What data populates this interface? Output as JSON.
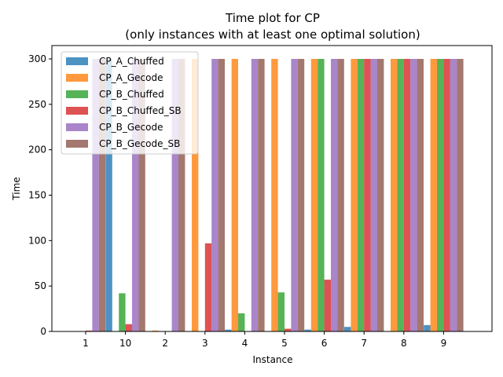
{
  "chart_data": {
    "type": "bar",
    "title": "Time plot for CP",
    "subtitle": "(only instances with at least one optimal solution)",
    "xlabel": "Instance",
    "ylabel": "Time",
    "categories": [
      "1",
      "10",
      "2",
      "3",
      "4",
      "5",
      "6",
      "7",
      "8",
      "9"
    ],
    "ylim": [
      0,
      315
    ],
    "yticks": [
      0,
      50,
      100,
      150,
      200,
      250,
      300
    ],
    "grid": false,
    "legend_position": "top-left",
    "series": [
      {
        "name": "CP_A_Chuffed",
        "color": "#1f77b4",
        "values": [
          0,
          300,
          0,
          0,
          2,
          0,
          2,
          5,
          0,
          7
        ]
      },
      {
        "name": "CP_A_Gecode",
        "color": "#ff7f0e",
        "values": [
          0,
          0,
          1,
          300,
          300,
          300,
          300,
          300,
          300,
          300
        ]
      },
      {
        "name": "CP_B_Chuffed",
        "color": "#2ca02c",
        "values": [
          0,
          42,
          0,
          0,
          20,
          43,
          300,
          300,
          300,
          300
        ]
      },
      {
        "name": "CP_B_Chuffed_SB",
        "color": "#d62728",
        "values": [
          1,
          8,
          0,
          97,
          0,
          3,
          57,
          300,
          300,
          300
        ]
      },
      {
        "name": "CP_B_Gecode",
        "color": "#9467bd",
        "values": [
          300,
          300,
          300,
          300,
          300,
          300,
          300,
          300,
          300,
          300
        ]
      },
      {
        "name": "CP_B_Gecode_SB",
        "color": "#8c564b",
        "values": [
          300,
          300,
          300,
          300,
          300,
          300,
          300,
          300,
          300,
          300
        ]
      }
    ]
  }
}
